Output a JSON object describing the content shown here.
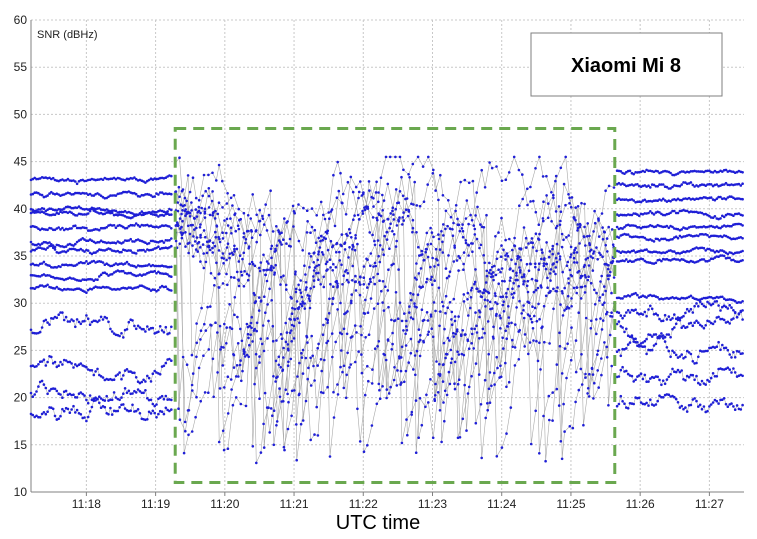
{
  "chart_data": {
    "type": "scatter",
    "title": "",
    "device_label": "Xiaomi Mi 8",
    "xlabel": "UTC time",
    "ylabel": "SNR (dBHz)",
    "ylim": [
      10,
      60
    ],
    "y_ticks": [
      10,
      15,
      20,
      25,
      30,
      35,
      40,
      45,
      50,
      55,
      60
    ],
    "x_range": [
      "11:17:12",
      "11:27:30"
    ],
    "x_ticks": [
      "11:18",
      "11:19",
      "11:20",
      "11:21",
      "11:22",
      "11:23",
      "11:24",
      "11:25",
      "11:26",
      "11:27"
    ],
    "grid": true,
    "highlight_box": {
      "time_start": "11:19:17",
      "time_end": "11:25:38",
      "snr_min": 11,
      "snr_max": 48.5,
      "color": "#6aa84f",
      "style": "dashed"
    },
    "colors": {
      "points": "#1f1fd6",
      "lines": "#a9a9a9",
      "grid": "#c8c8c8",
      "axis": "#808080"
    },
    "series_description": "SNR traces of many satellites; stable 33-43 dBHz outside the box, strongly fluctuating 13-45 dBHz inside the box",
    "segments": {
      "stable_before": {
        "time_start": "11:17:12",
        "time_end": "11:19:15",
        "band_levels": [
          43.0,
          41.5,
          40.0,
          39.5,
          38.0,
          36.5,
          35.5,
          34.0,
          33.0,
          31.5,
          27.5,
          23.0,
          20.5,
          18.5
        ]
      },
      "disturbed": {
        "time_start": "11:19:17",
        "time_end": "11:25:38",
        "snr_range": [
          13,
          45.5
        ],
        "median_approx": 38
      },
      "stable_after": {
        "time_start": "11:25:40",
        "time_end": "11:27:30",
        "band_levels": [
          44.0,
          42.5,
          41.0,
          39.5,
          38.0,
          37.0,
          35.5,
          34.5,
          30.5,
          29.0,
          27.5,
          25.0,
          22.0,
          19.5
        ]
      }
    }
  }
}
